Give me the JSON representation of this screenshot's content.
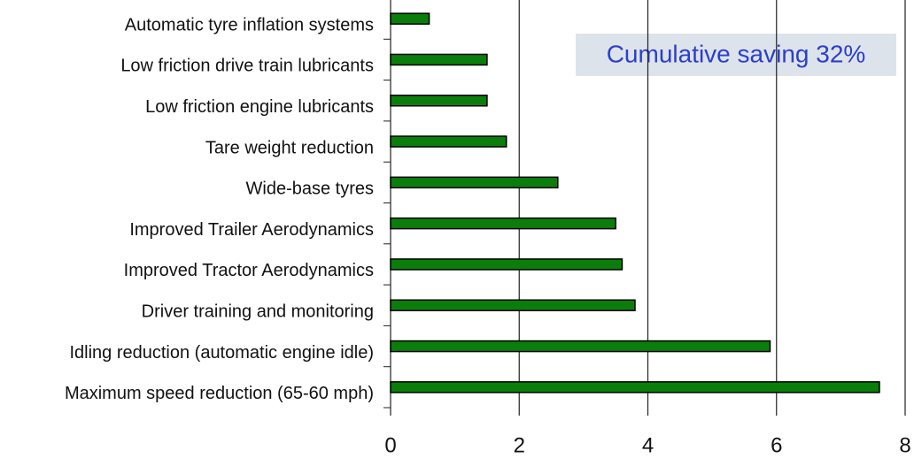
{
  "chart_data": {
    "type": "barh",
    "annotation": "Cumulative saving 32%",
    "categories": [
      "Automatic tyre inflation systems",
      "Low friction drive train lubricants",
      "Low friction engine lubricants",
      "Tare weight reduction",
      "Wide-base tyres",
      "Improved Trailer Aerodynamics",
      "Improved Tractor Aerodynamics",
      "Driver training and monitoring",
      "Idling reduction (automatic engine idle)",
      "Maximum speed reduction (65-60 mph)"
    ],
    "values": [
      0.6,
      1.5,
      1.5,
      1.8,
      2.6,
      3.5,
      3.6,
      3.8,
      5.9,
      7.6
    ],
    "color": "#0b7d0b",
    "xlim": [
      0,
      8
    ],
    "xticks": [
      0,
      2,
      4,
      6,
      8
    ],
    "grid": true
  }
}
